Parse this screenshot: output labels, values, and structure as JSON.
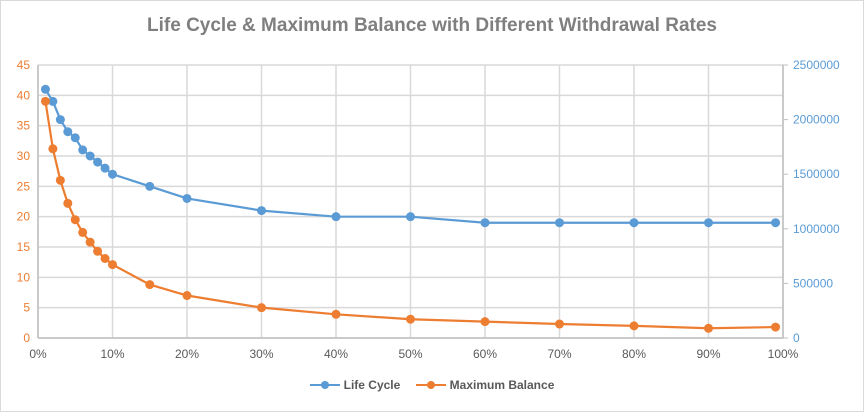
{
  "chart_data": {
    "type": "line",
    "title": "Life Cycle & Maximum Balance with Different Withdrawal Rates",
    "xlabel": "",
    "x": [
      0.01,
      0.02,
      0.03,
      0.04,
      0.05,
      0.06,
      0.07,
      0.08,
      0.09,
      0.1,
      0.15,
      0.2,
      0.3,
      0.4,
      0.5,
      0.6,
      0.7,
      0.8,
      0.9,
      0.99
    ],
    "xlim": [
      0,
      1
    ],
    "x_ticks": [
      "0%",
      "10%",
      "20%",
      "30%",
      "40%",
      "50%",
      "60%",
      "70%",
      "80%",
      "90%",
      "100%"
    ],
    "y_left": {
      "range": [
        0,
        45
      ],
      "ticks": [
        "0",
        "5",
        "10",
        "15",
        "20",
        "25",
        "30",
        "35",
        "40",
        "45"
      ],
      "color": "#ed7d31"
    },
    "y_right": {
      "range": [
        0,
        2500000
      ],
      "ticks": [
        "0",
        "500000",
        "1000000",
        "1500000",
        "2000000",
        "2500000"
      ],
      "color": "#5b9bd5"
    },
    "grid": true,
    "legend": "bottom",
    "series": [
      {
        "name": "Life Cycle",
        "axis": "left",
        "color": "#5b9bd5",
        "values": [
          41,
          39,
          36,
          34,
          33,
          31,
          30,
          29,
          28,
          27,
          25,
          23,
          21,
          20,
          20,
          19,
          19,
          19,
          19,
          19
        ]
      },
      {
        "name": "Maximum Balance",
        "axis": "right",
        "color": "#ed7d31",
        "values": [
          2167000,
          1733000,
          1444000,
          1233000,
          1083000,
          967000,
          878000,
          794000,
          728000,
          672000,
          489000,
          389000,
          278000,
          217000,
          172000,
          150000,
          128000,
          111000,
          89000,
          100000
        ]
      }
    ]
  }
}
